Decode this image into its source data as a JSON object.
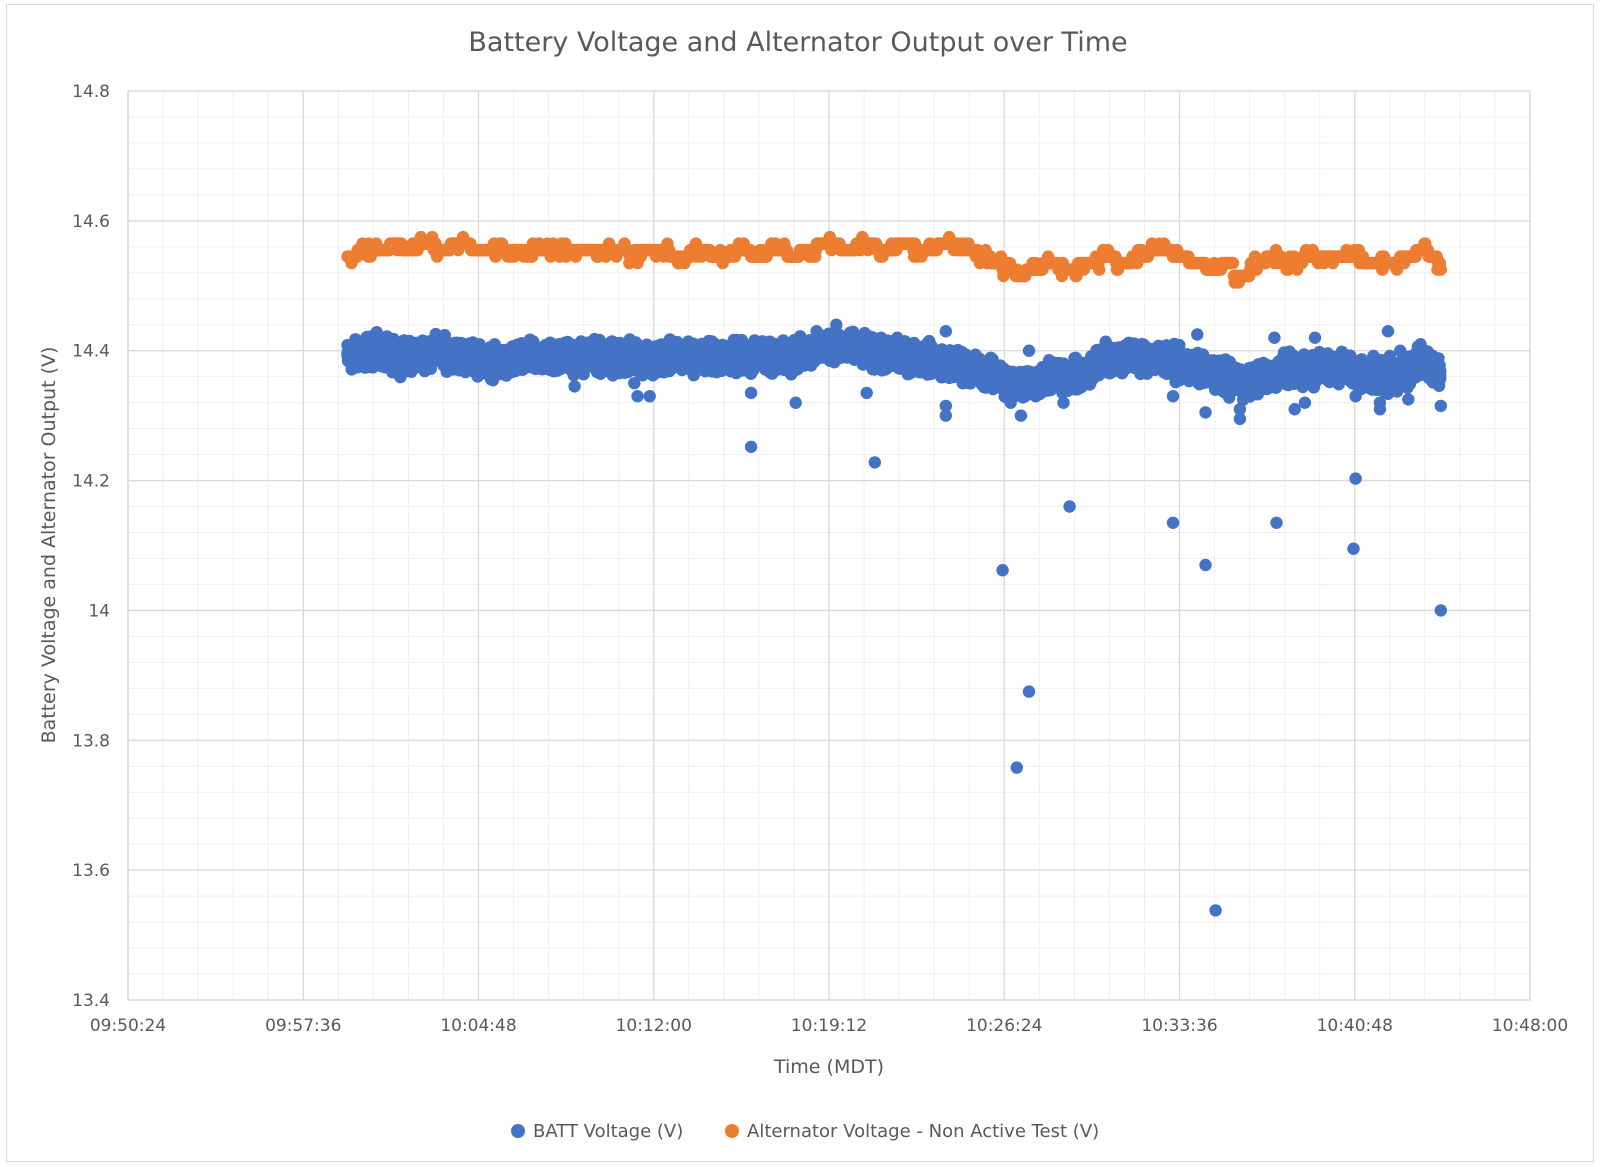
{
  "chart_data": {
    "type": "scatter",
    "title": "Battery Voltage and Alternator Output over Time",
    "xlabel": "Time (MDT)",
    "ylabel": "Battery Voltage and Alternator Output (V)",
    "x_ticks": [
      "09:50:24",
      "09:57:36",
      "10:04:48",
      "10:12:00",
      "10:19:12",
      "10:26:24",
      "10:33:36",
      "10:40:48",
      "10:48:00"
    ],
    "xlim": [
      "09:50:24",
      "10:48:00"
    ],
    "y_ticks": [
      "13.4",
      "13.6",
      "13.8",
      "14",
      "14.2",
      "14.4",
      "14.6",
      "14.8"
    ],
    "ylim": [
      13.4,
      14.8
    ],
    "grid": "major and minor",
    "legend_position": "bottom",
    "colors": {
      "batt": "#4472c4",
      "alt": "#ed7d31",
      "grid_major": "#d9d9d9",
      "grid_minor": "#efefef",
      "text": "#595959"
    },
    "series": [
      {
        "name": "BATT Voltage (V)",
        "color": "#4472c4",
        "band": [
          [
            "09:59:25",
            14.39
          ],
          [
            "10:00:30",
            14.4
          ],
          [
            "10:01:40",
            14.39
          ],
          [
            "10:03:00",
            14.4
          ],
          [
            "10:04:20",
            14.39
          ],
          [
            "10:05:40",
            14.38
          ],
          [
            "10:07:00",
            14.39
          ],
          [
            "10:08:20",
            14.39
          ],
          [
            "10:09:40",
            14.39
          ],
          [
            "10:11:00",
            14.39
          ],
          [
            "10:12:20",
            14.39
          ],
          [
            "10:13:40",
            14.39
          ],
          [
            "10:15:00",
            14.39
          ],
          [
            "10:16:20",
            14.39
          ],
          [
            "10:17:40",
            14.39
          ],
          [
            "10:18:30",
            14.4
          ],
          [
            "10:19:20",
            14.41
          ],
          [
            "10:20:30",
            14.4
          ],
          [
            "10:21:40",
            14.39
          ],
          [
            "10:23:00",
            14.39
          ],
          [
            "10:24:20",
            14.38
          ],
          [
            "10:25:20",
            14.37
          ],
          [
            "10:26:00",
            14.36
          ],
          [
            "10:26:40",
            14.35
          ],
          [
            "10:27:30",
            14.35
          ],
          [
            "10:28:30",
            14.36
          ],
          [
            "10:29:30",
            14.36
          ],
          [
            "10:30:00",
            14.37
          ],
          [
            "10:30:30",
            14.39
          ],
          [
            "10:31:30",
            14.39
          ],
          [
            "10:32:30",
            14.39
          ],
          [
            "10:33:30",
            14.38
          ],
          [
            "10:34:30",
            14.37
          ],
          [
            "10:35:30",
            14.36
          ],
          [
            "10:36:20",
            14.35
          ],
          [
            "10:37:10",
            14.36
          ],
          [
            "10:38:00",
            14.37
          ],
          [
            "10:39:00",
            14.37
          ],
          [
            "10:39:50",
            14.38
          ],
          [
            "10:40:40",
            14.37
          ],
          [
            "10:41:30",
            14.36
          ],
          [
            "10:42:30",
            14.36
          ],
          [
            "10:43:20",
            14.38
          ],
          [
            "10:44:00",
            14.38
          ],
          [
            "10:44:20",
            14.36
          ]
        ],
        "outliers": [
          [
            "10:11:12",
            14.35
          ],
          [
            "10:11:20",
            14.33
          ],
          [
            "10:11:50",
            14.33
          ],
          [
            "10:08:45",
            14.345
          ],
          [
            "10:16:00",
            14.335
          ],
          [
            "10:16:00",
            14.252
          ],
          [
            "10:17:50",
            14.32
          ],
          [
            "10:19:30",
            14.44
          ],
          [
            "10:20:45",
            14.335
          ],
          [
            "10:21:05",
            14.228
          ],
          [
            "10:22:00",
            14.42
          ],
          [
            "10:24:00",
            14.315
          ],
          [
            "10:24:00",
            14.3
          ],
          [
            "10:24:00",
            14.43
          ],
          [
            "10:26:20",
            14.062
          ],
          [
            "10:26:40",
            14.32
          ],
          [
            "10:26:55",
            13.758
          ],
          [
            "10:27:05",
            14.3
          ],
          [
            "10:27:25",
            13.875
          ],
          [
            "10:27:25",
            14.4
          ],
          [
            "10:28:50",
            14.32
          ],
          [
            "10:29:05",
            14.16
          ],
          [
            "10:33:20",
            14.135
          ],
          [
            "10:33:20",
            14.33
          ],
          [
            "10:34:20",
            14.425
          ],
          [
            "10:34:40",
            14.07
          ],
          [
            "10:34:40",
            14.305
          ],
          [
            "10:35:05",
            13.538
          ],
          [
            "10:35:20",
            14.38
          ],
          [
            "10:36:05",
            14.295
          ],
          [
            "10:36:05",
            14.31
          ],
          [
            "10:37:30",
            14.42
          ],
          [
            "10:37:35",
            14.135
          ],
          [
            "10:38:20",
            14.31
          ],
          [
            "10:38:45",
            14.32
          ],
          [
            "10:39:10",
            14.42
          ],
          [
            "10:40:45",
            14.095
          ],
          [
            "10:40:50",
            14.203
          ],
          [
            "10:40:50",
            14.33
          ],
          [
            "10:41:50",
            14.32
          ],
          [
            "10:41:50",
            14.31
          ],
          [
            "10:42:10",
            14.43
          ],
          [
            "10:43:00",
            14.325
          ],
          [
            "10:43:30",
            14.41
          ],
          [
            "10:44:20",
            14.0
          ],
          [
            "10:44:20",
            14.315
          ],
          [
            "10:42:40",
            14.4
          ]
        ]
      },
      {
        "name": "Alternator Voltage - Non Active Test (V)",
        "color": "#ed7d31",
        "points": [
          [
            "09:59:25",
            14.545
          ],
          [
            "09:59:50",
            14.555
          ],
          [
            "10:00:40",
            14.555
          ],
          [
            "10:01:10",
            14.565
          ],
          [
            "10:01:40",
            14.555
          ],
          [
            "10:02:20",
            14.565
          ],
          [
            "10:03:00",
            14.555
          ],
          [
            "10:03:40",
            14.565
          ],
          [
            "10:04:30",
            14.555
          ],
          [
            "10:08:00",
            14.555
          ],
          [
            "10:10:00",
            14.555
          ],
          [
            "10:11:00",
            14.545
          ],
          [
            "10:11:30",
            14.555
          ],
          [
            "10:12:40",
            14.545
          ],
          [
            "10:13:30",
            14.555
          ],
          [
            "10:14:20",
            14.545
          ],
          [
            "10:15:10",
            14.555
          ],
          [
            "10:16:00",
            14.545
          ],
          [
            "10:16:40",
            14.555
          ],
          [
            "10:17:30",
            14.545
          ],
          [
            "10:18:00",
            14.555
          ],
          [
            "10:18:40",
            14.565
          ],
          [
            "10:19:40",
            14.555
          ],
          [
            "10:20:20",
            14.565
          ],
          [
            "10:21:10",
            14.555
          ],
          [
            "10:22:00",
            14.565
          ],
          [
            "10:22:40",
            14.555
          ],
          [
            "10:23:40",
            14.565
          ],
          [
            "10:24:30",
            14.555
          ],
          [
            "10:25:20",
            14.545
          ],
          [
            "10:25:50",
            14.535
          ],
          [
            "10:26:20",
            14.525
          ],
          [
            "10:26:50",
            14.515
          ],
          [
            "10:27:20",
            14.525
          ],
          [
            "10:28:00",
            14.535
          ],
          [
            "10:28:40",
            14.525
          ],
          [
            "10:29:30",
            14.535
          ],
          [
            "10:30:20",
            14.545
          ],
          [
            "10:31:00",
            14.535
          ],
          [
            "10:31:40",
            14.545
          ],
          [
            "10:32:20",
            14.555
          ],
          [
            "10:33:20",
            14.545
          ],
          [
            "10:34:00",
            14.535
          ],
          [
            "10:34:40",
            14.525
          ],
          [
            "10:35:20",
            14.535
          ],
          [
            "10:35:50",
            14.515
          ],
          [
            "10:36:30",
            14.535
          ],
          [
            "10:37:10",
            14.545
          ],
          [
            "10:37:50",
            14.535
          ],
          [
            "10:38:40",
            14.545
          ],
          [
            "10:39:40",
            14.545
          ],
          [
            "10:40:40",
            14.545
          ],
          [
            "10:41:10",
            14.535
          ],
          [
            "10:42:00",
            14.535
          ],
          [
            "10:42:40",
            14.545
          ],
          [
            "10:43:20",
            14.555
          ],
          [
            "10:43:50",
            14.545
          ],
          [
            "10:44:10",
            14.535
          ],
          [
            "10:44:20",
            14.525
          ]
        ]
      }
    ]
  }
}
